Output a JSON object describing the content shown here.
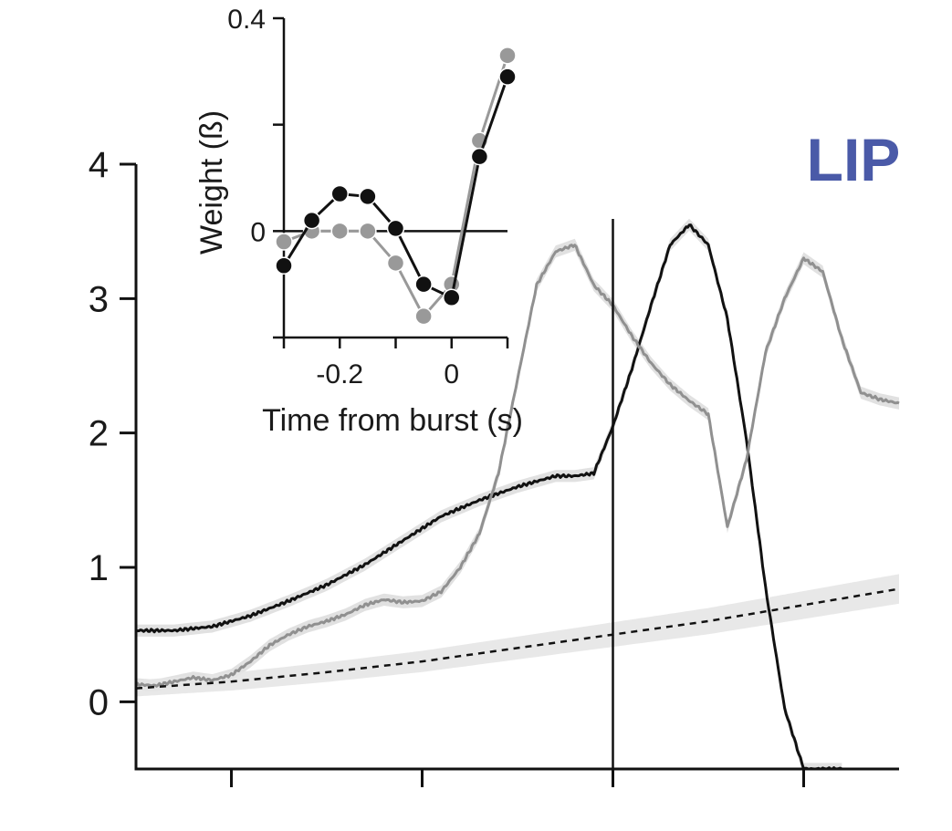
{
  "main_chart": {
    "region_label": "LIP",
    "region_label_color": "#4a5aa8",
    "y_tick_labels": [
      "0",
      "1",
      "2",
      "3",
      "4"
    ]
  },
  "inset_chart": {
    "xlabel": "Time from burst (s)",
    "ylabel": "Weight (ß)",
    "x_tick_labels": [
      "-0.2",
      "0"
    ],
    "y_tick_labels": [
      "0",
      "0.4"
    ]
  },
  "chart_data": [
    {
      "type": "line",
      "title": "",
      "region_label": "LIP",
      "xlabel": "",
      "ylabel": "",
      "x_unit": "relative time (event at 0)",
      "xlim": [
        -2.5,
        1.5
      ],
      "ylim": [
        -0.5,
        4.0
      ],
      "x_major_ticks": [
        -2,
        -1,
        0,
        1
      ],
      "x_tick_labels": [],
      "y_ticks": [
        0,
        1,
        2,
        3,
        4
      ],
      "event_line_x": 0,
      "series": [
        {
          "name": "black trace",
          "color": "#111111",
          "style": "solid",
          "shaded_error": true,
          "x": [
            -2.5,
            -2.3,
            -2.1,
            -1.9,
            -1.7,
            -1.5,
            -1.3,
            -1.1,
            -0.9,
            -0.7,
            -0.5,
            -0.3,
            -0.2,
            -0.1,
            0.0,
            0.1,
            0.2,
            0.3,
            0.4,
            0.5,
            0.6,
            0.7,
            0.8,
            0.9,
            1.0,
            1.1,
            1.2
          ],
          "y": [
            0.53,
            0.53,
            0.56,
            0.64,
            0.75,
            0.87,
            1.02,
            1.2,
            1.38,
            1.5,
            1.6,
            1.68,
            1.68,
            1.7,
            2.05,
            2.48,
            2.95,
            3.4,
            3.55,
            3.4,
            2.85,
            1.95,
            0.85,
            -0.05,
            -0.5,
            -0.5,
            -0.5
          ]
        },
        {
          "name": "gray trace",
          "color": "#909090",
          "style": "solid",
          "shaded_error": true,
          "x": [
            -2.5,
            -2.4,
            -2.3,
            -2.2,
            -2.1,
            -2.0,
            -1.9,
            -1.8,
            -1.7,
            -1.6,
            -1.5,
            -1.4,
            -1.3,
            -1.2,
            -1.1,
            -1.0,
            -0.9,
            -0.8,
            -0.7,
            -0.6,
            -0.5,
            -0.4,
            -0.3,
            -0.2,
            -0.1,
            0.0,
            0.1,
            0.2,
            0.3,
            0.4,
            0.5,
            0.6,
            0.7,
            0.8,
            0.9,
            1.0,
            1.1,
            1.2,
            1.3,
            1.4,
            1.5
          ],
          "y": [
            0.13,
            0.12,
            0.15,
            0.18,
            0.16,
            0.2,
            0.3,
            0.42,
            0.5,
            0.56,
            0.6,
            0.65,
            0.72,
            0.76,
            0.74,
            0.75,
            0.82,
            1.0,
            1.25,
            1.7,
            2.4,
            3.1,
            3.35,
            3.4,
            3.1,
            2.95,
            2.72,
            2.52,
            2.36,
            2.24,
            2.14,
            1.3,
            1.8,
            2.6,
            3.0,
            3.3,
            3.2,
            2.7,
            2.3,
            2.25,
            2.22
          ]
        },
        {
          "name": "dashed baseline",
          "color": "#111111",
          "style": "dashed",
          "shaded_error": true,
          "x": [
            -2.5,
            -2.0,
            -1.5,
            -1.0,
            -0.5,
            0.0,
            0.5,
            1.0,
            1.5
          ],
          "y": [
            0.1,
            0.15,
            0.22,
            0.3,
            0.4,
            0.5,
            0.6,
            0.72,
            0.84
          ]
        }
      ]
    },
    {
      "type": "line",
      "title": "",
      "xlabel": "Time from burst (s)",
      "ylabel": "Weight (ß)",
      "xlim": [
        -0.3,
        0.1
      ],
      "ylim": [
        -0.2,
        0.4
      ],
      "x_ticks": [
        -0.3,
        -0.2,
        -0.1,
        0.0,
        0.1
      ],
      "x_tick_labels": [
        "-0.2",
        "0"
      ],
      "y_ticks": [
        -0.2,
        0.0,
        0.2,
        0.4
      ],
      "y_tick_labels": [
        "0",
        "0.4"
      ],
      "zero_line": true,
      "series": [
        {
          "name": "gray",
          "color": "#999999",
          "marker": "circle",
          "x": [
            -0.3,
            -0.25,
            -0.2,
            -0.15,
            -0.1,
            -0.05,
            0.0,
            0.05,
            0.1
          ],
          "y": [
            -0.02,
            0.0,
            0.0,
            0.0,
            -0.06,
            -0.16,
            -0.1,
            0.17,
            0.33
          ]
        },
        {
          "name": "black",
          "color": "#111111",
          "marker": "circle",
          "x": [
            -0.3,
            -0.25,
            -0.2,
            -0.15,
            -0.1,
            -0.05,
            0.0,
            0.05,
            0.1
          ],
          "y": [
            -0.065,
            0.02,
            0.07,
            0.065,
            0.005,
            -0.1,
            -0.125,
            0.14,
            0.29
          ]
        }
      ]
    }
  ]
}
